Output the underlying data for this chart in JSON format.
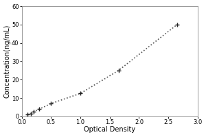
{
  "x_data": [
    0.1,
    0.15,
    0.2,
    0.3,
    0.5,
    1.0,
    1.65,
    2.65
  ],
  "y_data": [
    1.0,
    1.5,
    2.5,
    4.0,
    7.0,
    12.5,
    25.0,
    50.0
  ],
  "xlabel": "Optical Density",
  "ylabel": "Concentration(ng/mL)",
  "xlim": [
    0,
    3
  ],
  "ylim": [
    0,
    60
  ],
  "xticks": [
    0,
    0.5,
    1.0,
    1.5,
    2.0,
    2.5,
    3.0
  ],
  "yticks": [
    0,
    10,
    20,
    30,
    40,
    50,
    60
  ],
  "line_color": "#555555",
  "marker": "+",
  "marker_size": 5,
  "marker_color": "#222222",
  "line_style": ":",
  "line_width": 1.2,
  "axis_fontsize": 7,
  "tick_fontsize": 6,
  "fig_bg": "#ffffff",
  "plot_bg": "#ffffff",
  "border_color": "#888888",
  "ylabel_rotation": 90
}
